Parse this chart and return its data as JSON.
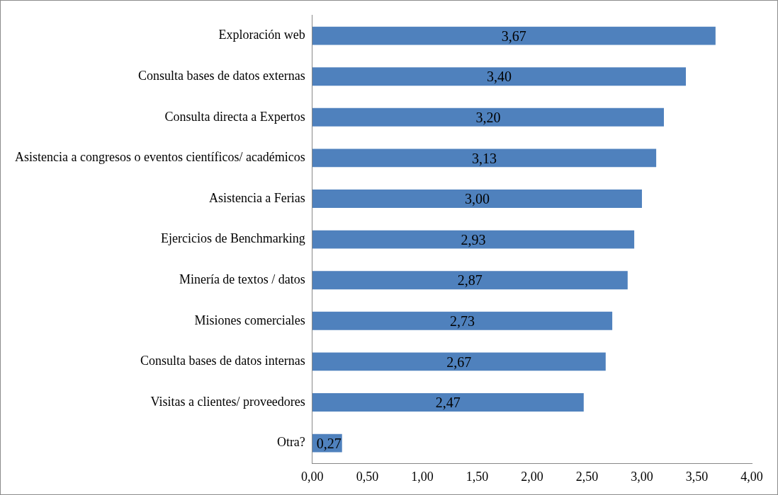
{
  "chart_data": {
    "type": "bar",
    "orientation": "horizontal",
    "categories": [
      "Exploración web",
      "Consulta bases de datos externas",
      "Consulta directa a Expertos",
      "Asistencia a congresos o eventos científicos/ académicos",
      "Asistencia a Ferias",
      "Ejercicios de Benchmarking",
      "Minería de textos / datos",
      "Misiones comerciales",
      "Consulta bases de datos internas",
      "Visitas a clientes/ proveedores",
      "Otra?"
    ],
    "values": [
      3.67,
      3.4,
      3.2,
      3.13,
      3.0,
      2.93,
      2.87,
      2.73,
      2.67,
      2.47,
      0.27
    ],
    "value_labels": [
      "3,67",
      "3,40",
      "3,20",
      "3,13",
      "3,00",
      "2,93",
      "2,87",
      "2,73",
      "2,67",
      "2,47",
      "0,27"
    ],
    "color": "#4f81bd",
    "xlim": [
      0,
      4
    ],
    "xticks": [
      {
        "value": 0,
        "label": "0,00"
      },
      {
        "value": 0.5,
        "label": "0,50"
      },
      {
        "value": 1,
        "label": "1,00"
      },
      {
        "value": 1.5,
        "label": "1,50"
      },
      {
        "value": 2,
        "label": "2,00"
      },
      {
        "value": 2.5,
        "label": "2,50"
      },
      {
        "value": 3,
        "label": "3,00"
      },
      {
        "value": 3.5,
        "label": "3,50"
      },
      {
        "value": 4,
        "label": "4,00"
      }
    ],
    "grid": false,
    "legend": false
  }
}
